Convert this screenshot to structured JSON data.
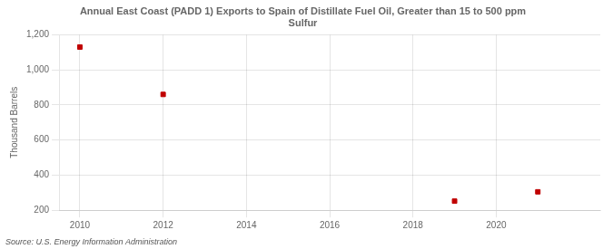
{
  "chart_data": {
    "type": "scatter",
    "title": "Annual East Coast (PADD 1) Exports to Spain of Distillate Fuel Oil, Greater than 15 to 500 ppm\nSulfur",
    "ylabel": "Thousand Barrels",
    "annotation": "Source: U.S. Energy Information Administration",
    "x": [
      2010,
      2012,
      2019,
      2021
    ],
    "values": [
      1130,
      860,
      252,
      305
    ],
    "color": "#c00000",
    "marker": "square",
    "xlim": [
      2009.5,
      2022.5
    ],
    "xticks": [
      2010,
      2012,
      2014,
      2016,
      2018,
      2020
    ],
    "ylim": [
      200,
      1200
    ],
    "yticks": [
      200,
      400,
      600,
      800,
      {
        "value": 1000,
        "label": "1,000"
      },
      {
        "value": 1200,
        "label": "1,200"
      }
    ],
    "grid": true,
    "legend": false
  }
}
